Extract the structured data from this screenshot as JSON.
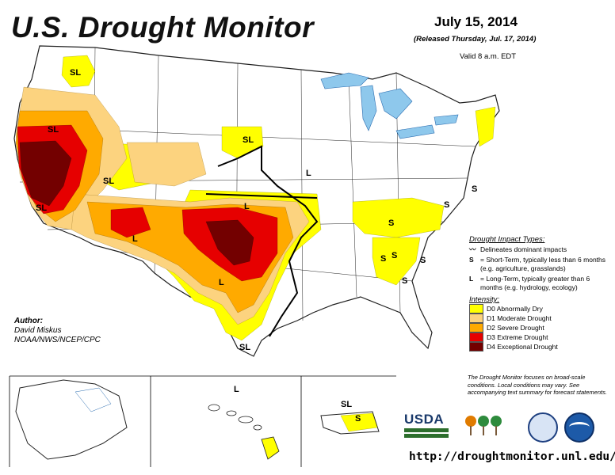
{
  "title": "U.S. Drought Monitor",
  "date": "July 15, 2014",
  "released": "(Released Thursday, Jul. 17, 2014)",
  "valid": "Valid 8 a.m. EDT",
  "legend": {
    "impact_title": "Drought Impact Types:",
    "impact_items": [
      {
        "symbol": "",
        "text": "Delineates dominant impacts"
      },
      {
        "symbol": "S",
        "text": "= Short-Term, typically less than 6 months (e.g. agriculture, grasslands)"
      },
      {
        "symbol": "L",
        "text": "= Long-Term, typically greater than 6 months (e.g. hydrology, ecology)"
      }
    ],
    "intensity_title": "Intensity:",
    "intensity_items": [
      {
        "label": "D0 Abnormally Dry",
        "color": "#ffff00"
      },
      {
        "label": "D1 Moderate Drought",
        "color": "#fcd37f"
      },
      {
        "label": "D2 Severe Drought",
        "color": "#ffaa00"
      },
      {
        "label": "D3 Extreme Drought",
        "color": "#e60000"
      },
      {
        "label": "D4 Exceptional Drought",
        "color": "#730000"
      }
    ]
  },
  "note": "The Drought Monitor focuses on broad-scale conditions. Local conditions may vary. See accompanying text summary for forecast statements.",
  "author": {
    "label": "Author:",
    "name": "David Miskus",
    "org": "NOAA/NWS/NCEP/CPC"
  },
  "url": "http://droughtmonitor.unl.edu/",
  "logos": {
    "usda": "USDA",
    "ndmc": "National Drought Mitigation Center"
  },
  "map_labels": [
    {
      "text": "SL",
      "region": "idaho-panhandle"
    },
    {
      "text": "SL",
      "region": "oregon"
    },
    {
      "text": "SL",
      "region": "utah"
    },
    {
      "text": "SL",
      "region": "south-dakota"
    },
    {
      "text": "L",
      "region": "iowa"
    },
    {
      "text": "SL",
      "region": "california"
    },
    {
      "text": "L",
      "region": "arizona"
    },
    {
      "text": "L",
      "region": "kansas"
    },
    {
      "text": "L",
      "region": "texas"
    },
    {
      "text": "SL",
      "region": "south-texas"
    },
    {
      "text": "S",
      "region": "virginia"
    },
    {
      "text": "S",
      "region": "kentucky"
    },
    {
      "text": "S",
      "region": "tennessee"
    },
    {
      "text": "S",
      "region": "north-carolina"
    },
    {
      "text": "S",
      "region": "south-carolina"
    },
    {
      "text": "S",
      "region": "georgia"
    },
    {
      "text": "S",
      "region": "new-jersey"
    },
    {
      "text": "L",
      "region": "hawaii"
    },
    {
      "text": "SL",
      "region": "puerto-rico-north"
    },
    {
      "text": "S",
      "region": "puerto-rico-south"
    }
  ]
}
